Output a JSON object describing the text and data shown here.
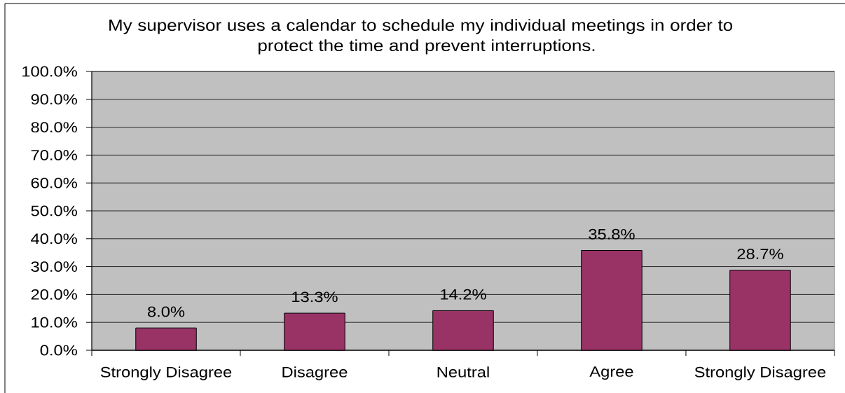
{
  "chart_data": {
    "type": "bar",
    "title": "My supervisor uses a calendar to schedule my individual meetings in order to protect the time and prevent interruptions.",
    "categories": [
      "Strongly Disagree",
      "Disagree",
      "Neutral",
      "Agree",
      "Strongly Disagree"
    ],
    "values": [
      8.0,
      13.3,
      14.2,
      35.8,
      28.7
    ],
    "value_labels": [
      "8.0%",
      "13.3%",
      "14.2%",
      "35.8%",
      "28.7%"
    ],
    "color": "#993366",
    "ylim": [
      0,
      100
    ],
    "yticks": [
      {
        "value": 0,
        "label": "0.0%"
      },
      {
        "value": 10,
        "label": "10.0%"
      },
      {
        "value": 20,
        "label": "20.0%"
      },
      {
        "value": 30,
        "label": "30.0%"
      },
      {
        "value": 40,
        "label": "40.0%"
      },
      {
        "value": 50,
        "label": "50.0%"
      },
      {
        "value": 60,
        "label": "60.0%"
      },
      {
        "value": 70,
        "label": "70.0%"
      },
      {
        "value": 80,
        "label": "80.0%"
      },
      {
        "value": 90,
        "label": "90.0%"
      },
      {
        "value": 100,
        "label": "100.0%"
      }
    ],
    "grid": "y"
  }
}
